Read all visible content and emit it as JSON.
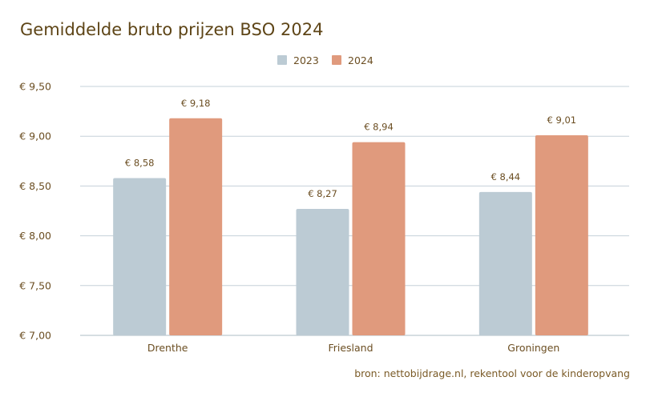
{
  "chart_data": {
    "type": "bar",
    "title": "Gemiddelde bruto prijzen BSO 2024",
    "categories": [
      "Drenthe",
      "Friesland",
      "Groningen"
    ],
    "series": [
      {
        "name": "2023",
        "color": "#bccbd4",
        "values": [
          8.58,
          8.27,
          8.44
        ],
        "labels": [
          "€ 8,58",
          "€ 8,27",
          "€ 8,44"
        ]
      },
      {
        "name": "2024",
        "color": "#e09a7d",
        "values": [
          9.18,
          8.94,
          9.01
        ],
        "labels": [
          "€ 9,18",
          "€ 8,94",
          "€ 9,01"
        ]
      }
    ],
    "ylim": [
      7.0,
      9.5
    ],
    "yticks": [
      7.0,
      7.5,
      8.0,
      8.5,
      9.0,
      9.5
    ],
    "ytick_labels": [
      "€ 7,00",
      "€ 7,50",
      "€ 8,00",
      "€ 8,50",
      "€ 9,00",
      "€ 9,50"
    ],
    "legend_position": "top-center",
    "grid": true,
    "xlabel": "",
    "ylabel": ""
  },
  "source": "bron: nettobijdrage.nl, rekentool voor de kinderopvang"
}
